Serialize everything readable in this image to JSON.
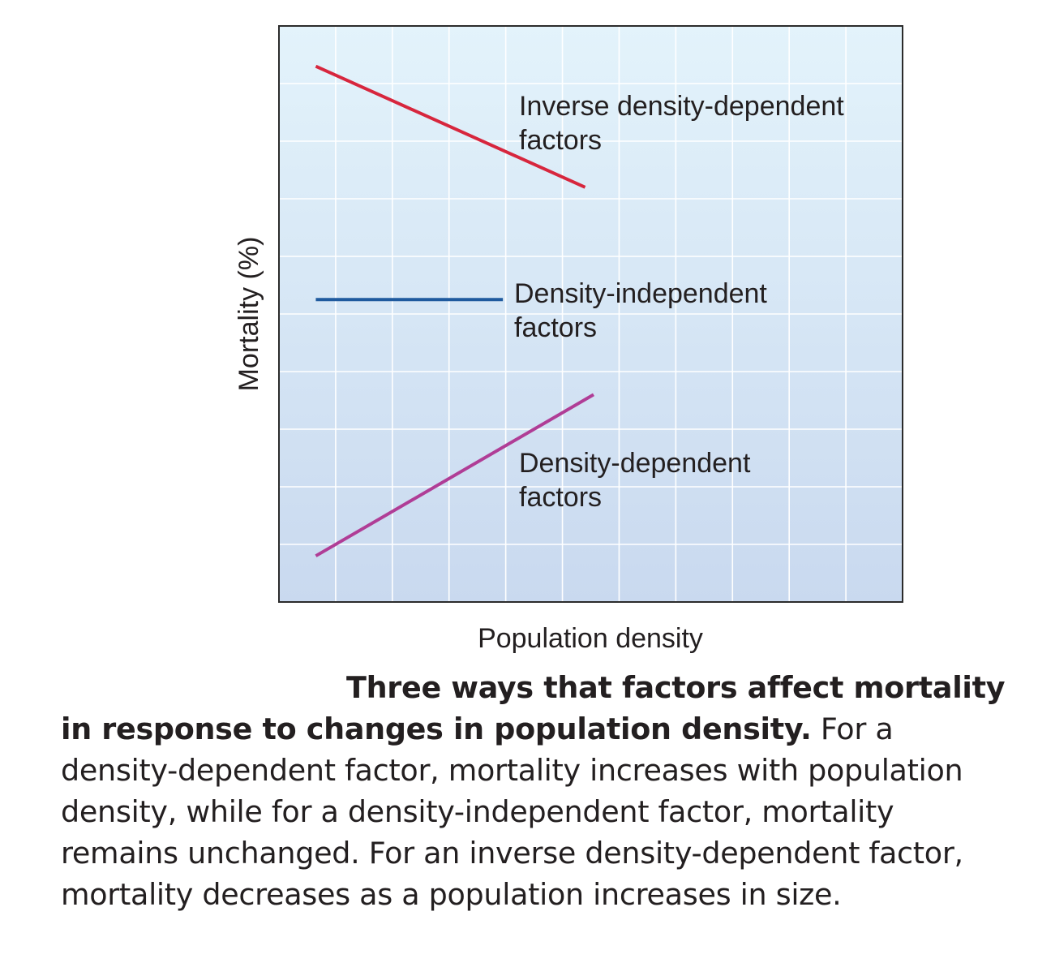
{
  "chart_data": {
    "type": "line",
    "xlabel": "Population density",
    "ylabel": "Mortality (%)",
    "grid": true,
    "xlim": [
      0,
      11
    ],
    "ylim": [
      0,
      10
    ],
    "series": [
      {
        "name": "Inverse density-dependent factors",
        "label_lines": [
          "Inverse density-dependent",
          "factors"
        ],
        "color": "#d7263d",
        "points": [
          [
            0.65,
            9.3
          ],
          [
            5.4,
            7.2
          ]
        ]
      },
      {
        "name": "Density-independent factors",
        "label_lines": [
          "Density-independent",
          "factors"
        ],
        "color": "#1f5a9e",
        "points": [
          [
            0.65,
            5.25
          ],
          [
            3.95,
            5.25
          ]
        ]
      },
      {
        "name": "Density-dependent factors",
        "label_lines": [
          "Density-dependent",
          "factors"
        ],
        "color": "#b03d96",
        "points": [
          [
            0.65,
            0.8
          ],
          [
            5.55,
            3.6
          ]
        ]
      }
    ]
  },
  "caption": {
    "bold": "Three ways that factors affect mortality in response to changes in population density.",
    "text": " For a density-dependent factor, mortality increases with population density, while for a density-independent factor, mortality remains unchanged. For an inverse density-dependent factor, mortality decreases as a population increases in size."
  }
}
